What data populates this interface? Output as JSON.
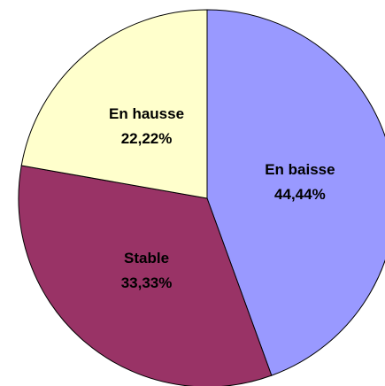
{
  "chart_data": {
    "type": "pie",
    "categories": [
      "En baisse",
      "Stable",
      "En hausse"
    ],
    "values": [
      44.44,
      33.33,
      22.22
    ],
    "value_labels": [
      "44,44%",
      "33,33%",
      "22,22%"
    ],
    "colors": [
      "#9999ff",
      "#993366",
      "#ffffcc"
    ]
  }
}
